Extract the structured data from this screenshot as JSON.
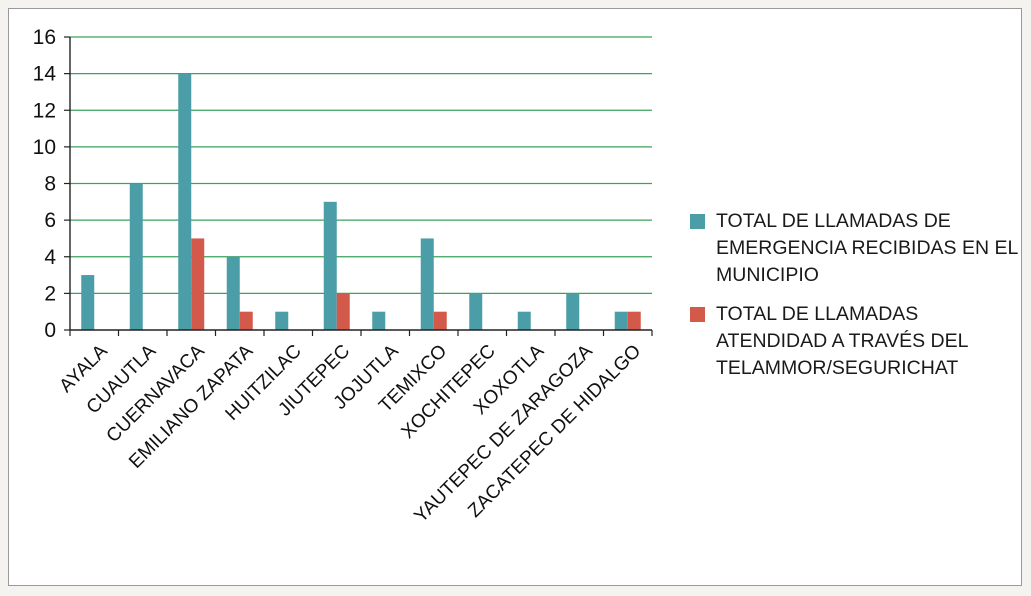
{
  "chart_data": {
    "type": "bar",
    "categories": [
      "AYALA",
      "CUAUTLA",
      "CUERNAVACA",
      "EMILIANO ZAPATA",
      "HUITZILAC",
      "JIUTEPEC",
      "JOJUTLA",
      "TEMIXCO",
      "XOCHITEPEC",
      "XOXOTLA",
      "YAUTEPEC DE ZARAGOZA",
      "ZACATEPEC DE HIDALGO"
    ],
    "series": [
      {
        "name": "TOTAL DE LLAMADAS DE EMERGENCIA RECIBIDAS EN EL MUNICIPIO",
        "color": "#4b9da8",
        "values": [
          3,
          8,
          14,
          4,
          1,
          7,
          1,
          5,
          2,
          1,
          2,
          1
        ]
      },
      {
        "name": "TOTAL DE LLAMADAS ATENDIDAD A TRAVÉS DEL TELAMMOR/SEGURICHAT",
        "color": "#d35a4a",
        "values": [
          0,
          0,
          5,
          1,
          0,
          2,
          0,
          1,
          0,
          0,
          0,
          1
        ]
      }
    ],
    "ylim": [
      0,
      16
    ],
    "yticks": [
      0,
      2,
      4,
      6,
      8,
      10,
      12,
      14,
      16
    ],
    "grid": true,
    "gridline_color": "#3aa35a",
    "legend_position": "right"
  }
}
